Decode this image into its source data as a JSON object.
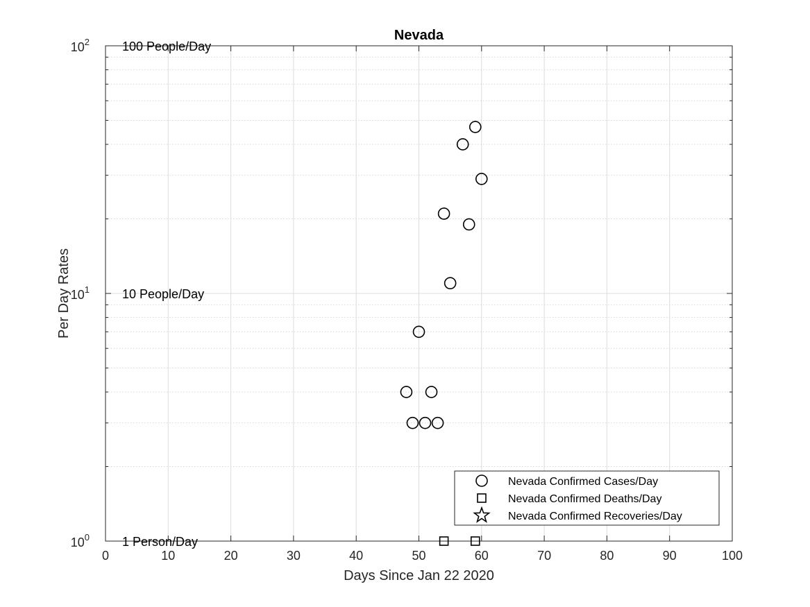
{
  "chart_data": {
    "type": "scatter",
    "title": "Nevada",
    "xlabel": "Days Since Jan 22 2020",
    "ylabel": "Per Day Rates",
    "xlim": [
      0,
      100
    ],
    "ylim": [
      1,
      100
    ],
    "yscale": "log",
    "grid": true,
    "x_ticks": [
      0,
      10,
      20,
      30,
      40,
      50,
      60,
      70,
      80,
      90,
      100
    ],
    "y_ticks": [
      {
        "value": 1,
        "base": "10",
        "exp": "0"
      },
      {
        "value": 10,
        "base": "10",
        "exp": "1"
      },
      {
        "value": 100,
        "base": "10",
        "exp": "2"
      }
    ],
    "reference_labels": [
      {
        "value": 100,
        "text": "100 People/Day"
      },
      {
        "value": 10,
        "text": "10 People/Day"
      },
      {
        "value": 1,
        "text": "1 Person/Day"
      }
    ],
    "legend_position": "bottom-right",
    "series": [
      {
        "name": "Nevada Confirmed Cases/Day",
        "marker": "circle",
        "points": [
          {
            "x": 48,
            "y": 4
          },
          {
            "x": 49,
            "y": 3
          },
          {
            "x": 50,
            "y": 7
          },
          {
            "x": 51,
            "y": 3
          },
          {
            "x": 52,
            "y": 4
          },
          {
            "x": 53,
            "y": 3
          },
          {
            "x": 54,
            "y": 21
          },
          {
            "x": 55,
            "y": 11
          },
          {
            "x": 57,
            "y": 40
          },
          {
            "x": 58,
            "y": 19
          },
          {
            "x": 59,
            "y": 47
          },
          {
            "x": 60,
            "y": 29
          }
        ]
      },
      {
        "name": "Nevada Confirmed Deaths/Day",
        "marker": "square",
        "points": [
          {
            "x": 54,
            "y": 1
          },
          {
            "x": 59,
            "y": 1
          }
        ]
      },
      {
        "name": "Nevada Confirmed Recoveries/Day",
        "marker": "star",
        "points": []
      }
    ]
  }
}
